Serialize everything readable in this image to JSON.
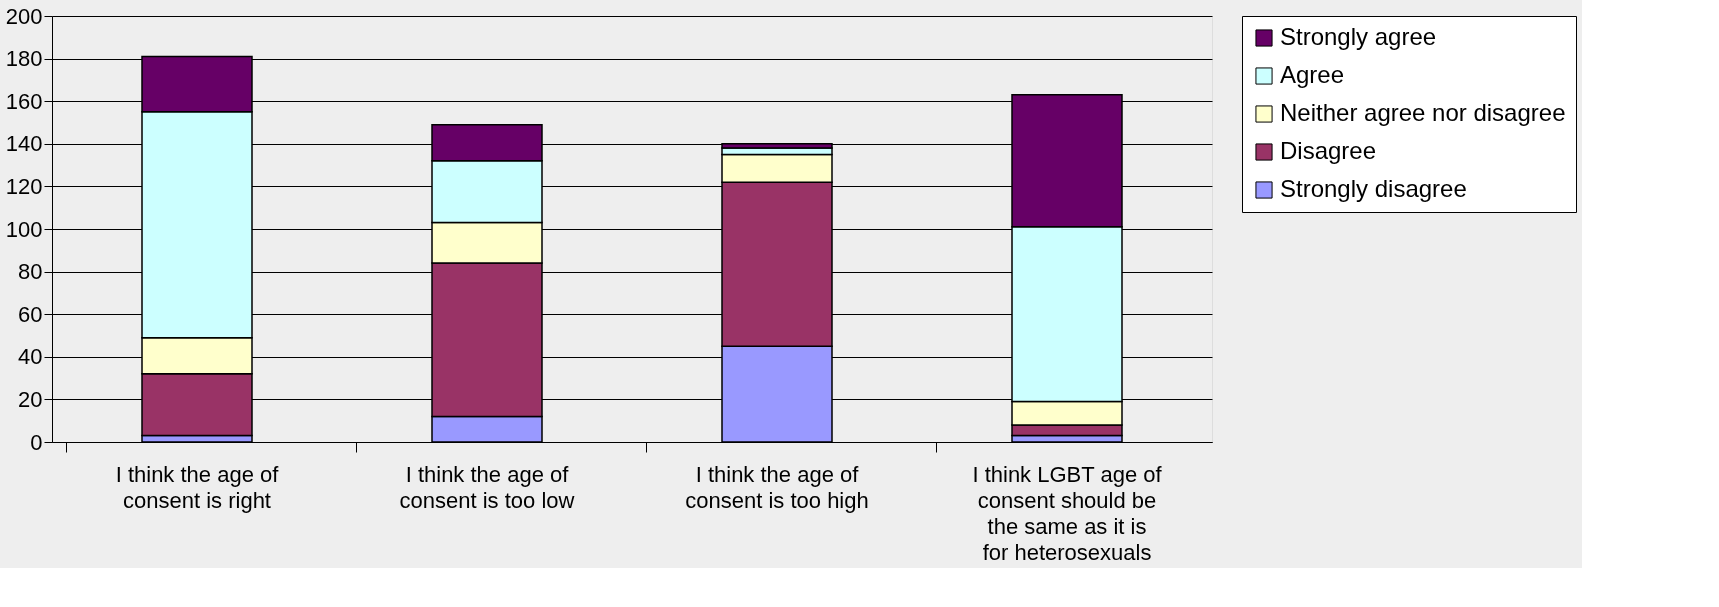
{
  "chart_data": {
    "type": "bar",
    "stacked": true,
    "categories": [
      "I think the age of consent is right",
      "I think the age of consent is too low",
      "I think the age of consent is too high",
      "I think LGBT age of consent should be the same as it is for heterosexuals"
    ],
    "series": [
      {
        "name": "Strongly disagree",
        "color": "#9999ff",
        "values": [
          3,
          12,
          45,
          3
        ]
      },
      {
        "name": "Disagree",
        "color": "#993366",
        "values": [
          29,
          72,
          77,
          5
        ]
      },
      {
        "name": "Neither agree nor disagree",
        "color": "#ffffcc",
        "values": [
          17,
          19,
          13,
          11
        ]
      },
      {
        "name": "Agree",
        "color": "#ccffff",
        "values": [
          106,
          29,
          3,
          82
        ]
      },
      {
        "name": "Strongly agree",
        "color": "#660066",
        "values": [
          26,
          17,
          2,
          62
        ]
      }
    ],
    "ylim": [
      0,
      200
    ],
    "yticks": [
      0,
      20,
      40,
      60,
      80,
      100,
      120,
      140,
      160,
      180,
      200
    ],
    "grid": "y",
    "legend": "right"
  }
}
